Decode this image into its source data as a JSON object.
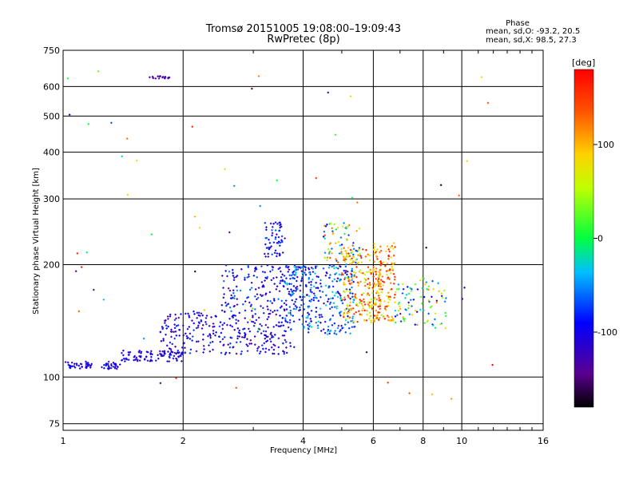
{
  "chart_data": {
    "type": "scatter",
    "title": "Tromsø 20151005 19:08:00–19:09:43",
    "subtitle": "RwPretec (8p)",
    "xlabel": "Frequency [MHz]",
    "ylabel": "Stationary phase Virtual Height [km]",
    "x_scale": "log",
    "y_scale": "log",
    "xlim": [
      1,
      16
    ],
    "ylim": [
      72,
      750
    ],
    "x_ticks": [
      1,
      2,
      4,
      6,
      8,
      10,
      16
    ],
    "x_tick_labels": [
      "1",
      "2",
      "4",
      "6",
      "8",
      "10",
      "16"
    ],
    "y_ticks": [
      75,
      100,
      200,
      300,
      400,
      500,
      600,
      750
    ],
    "y_tick_labels": [
      "75",
      "100",
      "200",
      "300",
      "400",
      "500",
      "600",
      "750"
    ],
    "grid": true,
    "stats": {
      "heading": "Phase",
      "line1": "mean, sd,O:  -93.2, 20.5",
      "line2": "mean, sd,X:   98.5, 27.3"
    },
    "colorbar": {
      "label": "[deg]",
      "range": [
        -180,
        180
      ],
      "ticks": [
        100,
        0,
        -100
      ],
      "tick_labels": [
        "100",
        "0",
        "-100"
      ]
    },
    "point_clusters": [
      {
        "x": [
          1.0,
          1.18
        ],
        "y": [
          105,
          110
        ],
        "n": 40,
        "phase": [
          -130,
          -80
        ]
      },
      {
        "x": [
          1.25,
          1.4
        ],
        "y": [
          105,
          110
        ],
        "n": 30,
        "phase": [
          -130,
          -80
        ]
      },
      {
        "x": [
          1.4,
          2.0
        ],
        "y": [
          110,
          118
        ],
        "n": 90,
        "phase": [
          -130,
          -80
        ]
      },
      {
        "x": [
          1.75,
          3.8
        ],
        "y": [
          115,
          150
        ],
        "n": 300,
        "phase": [
          -140,
          -70
        ]
      },
      {
        "x": [
          2.5,
          4.2
        ],
        "y": [
          150,
          200
        ],
        "n": 200,
        "phase": [
          -140,
          -50
        ]
      },
      {
        "x": [
          3.2,
          3.6
        ],
        "y": [
          210,
          260
        ],
        "n": 60,
        "phase": [
          -130,
          -60
        ]
      },
      {
        "x": [
          3.6,
          5.4
        ],
        "y": [
          130,
          200
        ],
        "n": 280,
        "phase": [
          -120,
          -20
        ]
      },
      {
        "x": [
          4.5,
          5.6
        ],
        "y": [
          200,
          260
        ],
        "n": 80,
        "phase": [
          -100,
          150
        ]
      },
      {
        "x": [
          5.0,
          6.3
        ],
        "y": [
          140,
          220
        ],
        "n": 220,
        "phase": [
          40,
          170
        ]
      },
      {
        "x": [
          6.0,
          6.8
        ],
        "y": [
          140,
          230
        ],
        "n": 130,
        "phase": [
          60,
          170
        ]
      },
      {
        "x": [
          6.8,
          7.6
        ],
        "y": [
          140,
          180
        ],
        "n": 40,
        "phase": [
          -110,
          120
        ]
      },
      {
        "x": [
          7.6,
          9.2
        ],
        "y": [
          135,
          185
        ],
        "n": 50,
        "phase": [
          -120,
          120
        ]
      },
      {
        "x": [
          1.63,
          1.85
        ],
        "y": [
          630,
          640
        ],
        "n": 22,
        "phase": [
          -140,
          -120
        ]
      },
      {
        "x": [
          1.02,
          12
        ],
        "y": [
          80,
          700
        ],
        "n": 60,
        "phase": [
          -180,
          180
        ]
      }
    ]
  }
}
